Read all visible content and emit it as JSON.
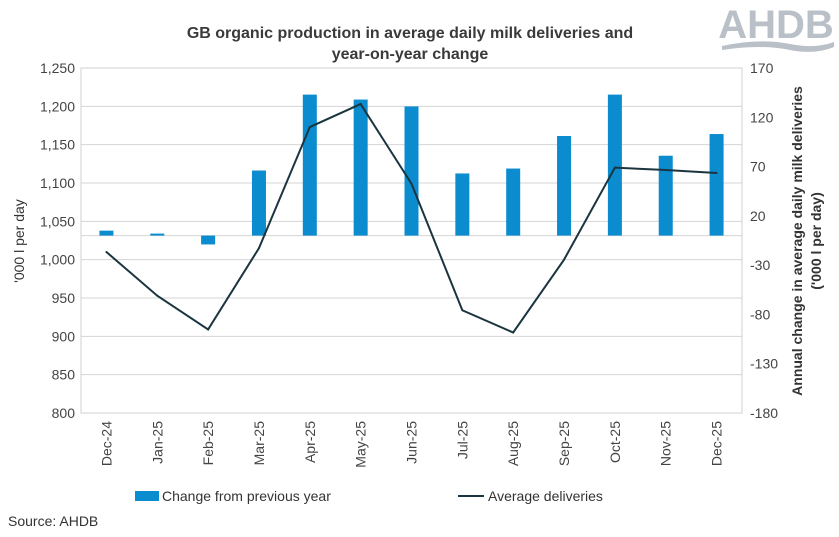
{
  "logo": {
    "text": "AHDB",
    "color": "#b9c0c7"
  },
  "source": "Source: AHDB",
  "chart_data": {
    "type": "bar+line",
    "title_lines": [
      "GB organic production in average daily milk deliveries and",
      "year-on-year change"
    ],
    "categories": [
      "Dec-24",
      "Jan-25",
      "Feb-25",
      "Mar-25",
      "Apr-25",
      "May-25",
      "Jun-25",
      "Jul-25",
      "Aug-25",
      "Sep-25",
      "Oct-25",
      "Nov-25",
      "Dec-25"
    ],
    "y_left": {
      "label": "'000 l per day",
      "range": [
        800,
        1250
      ],
      "step": 50,
      "ticks": [
        "800",
        "850",
        "900",
        "950",
        "1,000",
        "1,050",
        "1,100",
        "1,150",
        "1,200",
        "1,250"
      ]
    },
    "y_right": {
      "label_lines": [
        "Annual change in average daily milk deliveries",
        "('000 l per day)"
      ],
      "range": [
        -180,
        170
      ],
      "step": 50,
      "ticks": [
        "-180",
        "-130",
        "-80",
        "-30",
        "20",
        "70",
        "120",
        "170"
      ]
    },
    "series": [
      {
        "name": "Change from previous year",
        "kind": "bar",
        "axis": "right",
        "color": "#0a8ccf",
        "values": [
          5,
          2,
          -9,
          66,
          143,
          138,
          131,
          63,
          68,
          101,
          143,
          81,
          103
        ]
      },
      {
        "name": "Average deliveries",
        "kind": "line",
        "axis": "left",
        "color": "#1b3540",
        "values": [
          1010,
          953,
          909,
          1015,
          1173,
          1203,
          1099,
          934,
          905,
          1000,
          1120,
          1117,
          1113
        ]
      }
    ],
    "grid": true,
    "legend_position": "bottom"
  }
}
